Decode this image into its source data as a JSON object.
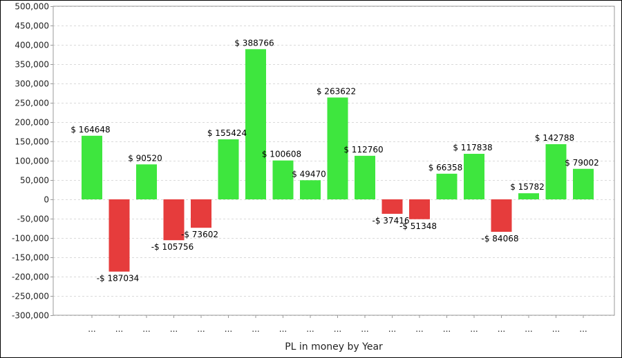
{
  "chart_data": {
    "type": "bar",
    "title": "",
    "xlabel": "PL in money by Year",
    "ylabel": "",
    "ylim": [
      -300000,
      500000
    ],
    "yticks": [
      -300000,
      -250000,
      -200000,
      -150000,
      -100000,
      -50000,
      0,
      50000,
      100000,
      150000,
      200000,
      250000,
      300000,
      350000,
      400000,
      450000,
      500000
    ],
    "ytick_labels": [
      "-300,000",
      "-250,000",
      "-200,000",
      "-150,000",
      "-100,000",
      "-50,000",
      "0",
      "50,000",
      "100,000",
      "150,000",
      "200,000",
      "250,000",
      "300,000",
      "350,000",
      "400,000",
      "450,000",
      "500,000"
    ],
    "categories": [
      "...",
      "...",
      "...",
      "...",
      "...",
      "...",
      "...",
      "...",
      "...",
      "...",
      "...",
      "...",
      "...",
      "...",
      "...",
      "...",
      "...",
      "...",
      "..."
    ],
    "values": [
      164648,
      -187034,
      90520,
      -105756,
      -73602,
      155424,
      388766,
      100608,
      49470,
      263622,
      112760,
      -37416,
      -51348,
      66358,
      117838,
      -84068,
      15782,
      142788,
      79002
    ],
    "data_labels": [
      "$ 164648",
      "-$ 187034",
      "$ 90520",
      "-$ 105756",
      "-$ 73602",
      "$ 155424",
      "$ 388766",
      "$ 100608",
      "$ 49470",
      "$ 263622",
      "$ 112760",
      "-$ 37416",
      "-$ 51348",
      "$ 66358",
      "$ 117838",
      "-$ 84068",
      "$ 15782",
      "$ 142788",
      "$ 79002"
    ],
    "grid": true,
    "colors": {
      "positive": "#3ee63e",
      "negative": "#e63c3c",
      "grid": "#d9d9d9",
      "axis": "#999999"
    }
  }
}
